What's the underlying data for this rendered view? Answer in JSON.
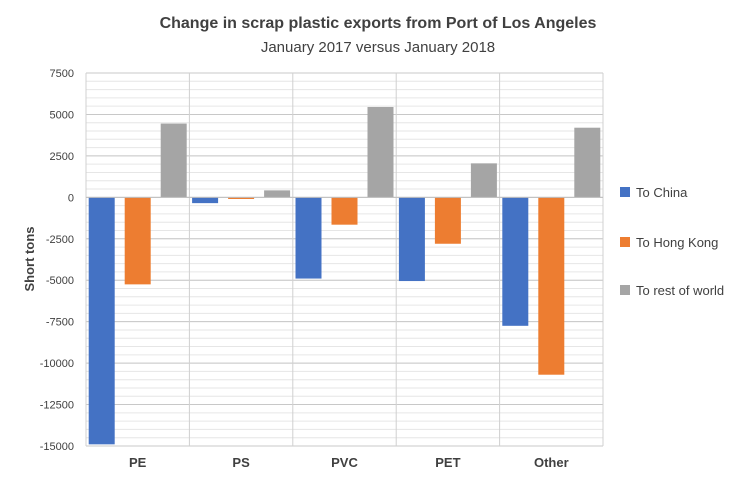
{
  "chart_data": {
    "type": "bar",
    "title": "Change in scrap plastic exports from Port of Los Angeles",
    "subtitle": "January 2017 versus January 2018",
    "ylabel": "Short tons",
    "xlabel": "",
    "categories": [
      "PE",
      "PS",
      "PVC",
      "PET",
      "Other"
    ],
    "series": [
      {
        "name": "To China",
        "color": "#4472C4",
        "values": [
          -14900,
          -350,
          -4900,
          -5050,
          -7750
        ]
      },
      {
        "name": "To Hong Kong",
        "color": "#ED7D31",
        "values": [
          -5250,
          -100,
          -1650,
          -2800,
          -10700
        ]
      },
      {
        "name": "To rest of world",
        "color": "#A5A5A5",
        "values": [
          4450,
          420,
          5450,
          2050,
          4200
        ]
      }
    ],
    "ylim": [
      -15000,
      7500
    ],
    "yticks": [
      7500,
      5000,
      2500,
      0,
      -2500,
      -5000,
      -7500,
      -10000,
      -12500,
      -15000
    ],
    "ytick_labels": [
      "7500",
      "5000",
      "2500",
      "0",
      "-2500",
      "-5000",
      "-7500",
      "-10000",
      "-12500",
      "-15000"
    ],
    "grid": true,
    "legend_position": "right"
  }
}
